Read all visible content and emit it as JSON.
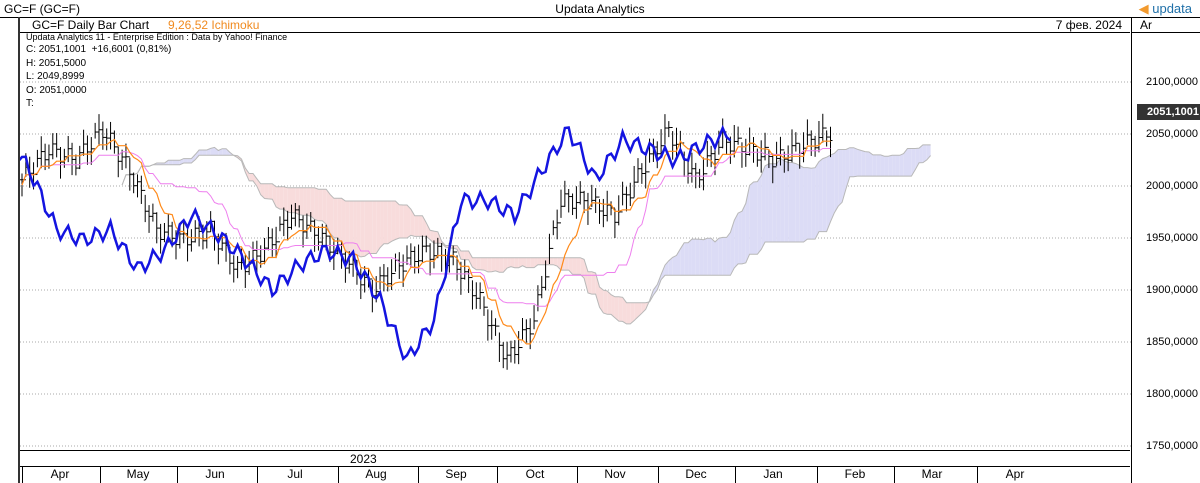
{
  "header": {
    "symbol": "GC=F (GC=F)",
    "app_title": "Updata Analytics",
    "logo": "updata"
  },
  "chart_header": {
    "title": "GC=F Daily Bar Chart",
    "indicator": "9,26,52 Ichimoku",
    "date": "7 фев. 2024",
    "axis_label": "Ar"
  },
  "info": {
    "source": "Updata Analytics 11 - Enterprise Edition : Data by Yahoo! Finance",
    "close": "C: 2051,1001  +16,6001 (0,81%)",
    "high": "H: 2051,5000",
    "low": "L: 2049,8999",
    "open": "O: 2051,0000",
    "t": "T:"
  },
  "yaxis": {
    "labels": [
      "2100,0000",
      "2050,0000",
      "2000,0000",
      "1950,0000",
      "1900,0000",
      "1850,0000",
      "1800,0000",
      "1750,0000"
    ],
    "last_price": "2051,1001"
  },
  "xaxis": {
    "year": "2023",
    "months": [
      "Apr",
      "May",
      "Jun",
      "Jul",
      "Aug",
      "Sep",
      "Oct",
      "Nov",
      "Dec",
      "Jan",
      "Feb",
      "Mar",
      "Apr"
    ]
  },
  "colors": {
    "lagging": "#1414e0",
    "tenkan": "#ff8a1a",
    "kijun": "#ee7fee",
    "cloud_bull": "#dcdcf6",
    "cloud_bear": "#f8dcdc",
    "span": "#b8b8b8"
  },
  "chart_data": {
    "type": "bar",
    "title": "GC=F Daily Bar Chart",
    "indicator": "Ichimoku",
    "params": [
      9,
      26,
      52
    ],
    "ylim": [
      1740,
      2130
    ],
    "closes": [
      2006,
      2035,
      2025,
      2054,
      2015,
      1958,
      1948,
      1958,
      1920,
      1938,
      1972,
      1953,
      1929,
      1900,
      1924,
      1938,
      1929,
      1890,
      1833,
      1871,
      1986,
      1986,
      1972,
      2015,
      2054,
      2006,
      2044,
      2035,
      2025,
      2040,
      2051
    ]
  }
}
